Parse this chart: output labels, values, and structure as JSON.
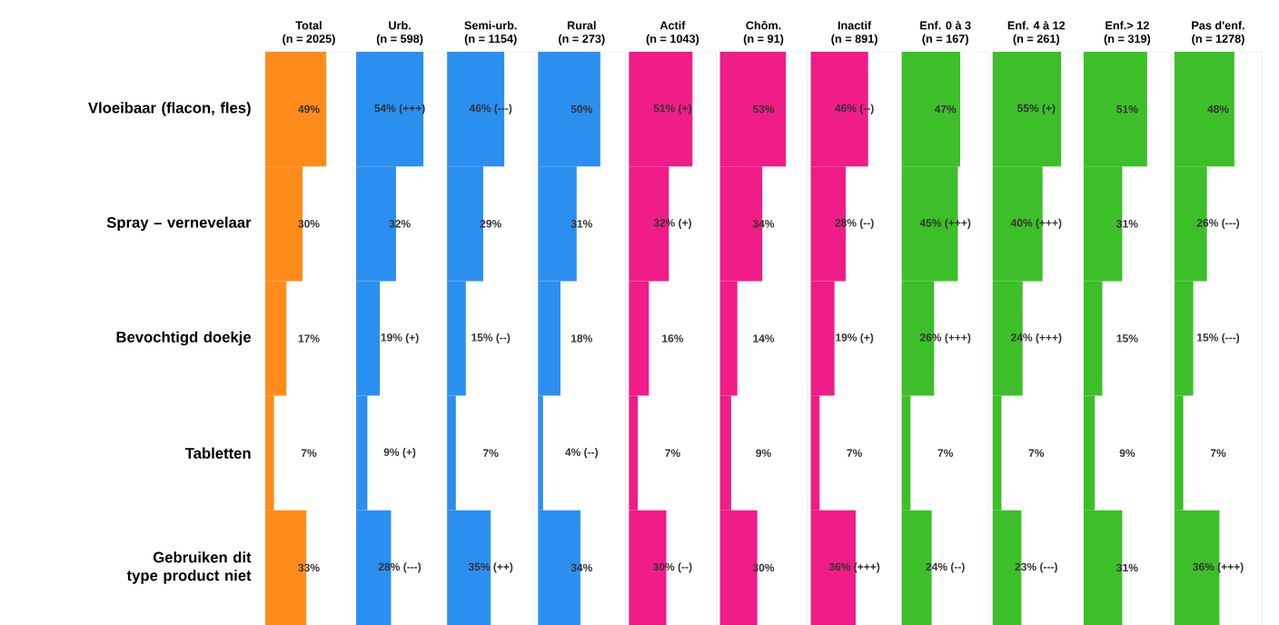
{
  "chart_data": [
    {
      "type": "bar",
      "orientation": "horizontal",
      "title": "Total",
      "subtitle": "(n = 2025)",
      "categories": [
        "Vloeibaar (flacon, fles)",
        "Spray – vernevelaar",
        "Bevochtigd doekje",
        "Tabletten",
        "Gebruiken dit type product niet"
      ],
      "values": [
        49,
        30,
        17,
        7,
        33
      ],
      "value_labels": [
        "49%",
        "30%",
        "17%",
        "7%",
        "33%"
      ],
      "color": "#ff8c1a",
      "xlim": [
        0,
        70
      ],
      "tick_labels": "y"
    },
    {
      "type": "bar",
      "orientation": "horizontal",
      "title": "Urb.",
      "subtitle": "(n = 598)",
      "values": [
        54,
        32,
        19,
        9,
        28
      ],
      "value_labels": [
        "54% (+++)",
        "32%",
        "19% (+)",
        "9% (+)",
        "28% (---)"
      ],
      "color": "#2b8ff0",
      "xlim": [
        0,
        70
      ],
      "tick_labels": false
    },
    {
      "type": "bar",
      "orientation": "horizontal",
      "title": "Semi-urb.",
      "subtitle": "(n = 1154)",
      "values": [
        46,
        29,
        15,
        7,
        35
      ],
      "value_labels": [
        "46% (---)",
        "29%",
        "15% (--)",
        "7%",
        "35% (++)"
      ],
      "color": "#2b8ff0",
      "xlim": [
        0,
        70
      ],
      "tick_labels": false
    },
    {
      "type": "bar",
      "orientation": "horizontal",
      "title": "Rural",
      "subtitle": "(n = 273)",
      "values": [
        50,
        31,
        18,
        4,
        34
      ],
      "value_labels": [
        "50%",
        "31%",
        "18%",
        "4% (--)",
        "34%"
      ],
      "color": "#2b8ff0",
      "xlim": [
        0,
        70
      ],
      "tick_labels": false
    },
    {
      "type": "bar",
      "orientation": "horizontal",
      "title": "Actif",
      "subtitle": "(n = 1043)",
      "values": [
        51,
        32,
        16,
        7,
        30
      ],
      "value_labels": [
        "51% (+)",
        "32% (+)",
        "16%",
        "7%",
        "30% (--)"
      ],
      "color": "#f01c87",
      "xlim": [
        0,
        70
      ],
      "tick_labels": false
    },
    {
      "type": "bar",
      "orientation": "horizontal",
      "title": "Chôm.",
      "subtitle": "(n = 91)",
      "values": [
        53,
        34,
        14,
        9,
        30
      ],
      "value_labels": [
        "53%",
        "34%",
        "14%",
        "9%",
        "30%"
      ],
      "color": "#f01c87",
      "xlim": [
        0,
        70
      ],
      "tick_labels": false
    },
    {
      "type": "bar",
      "orientation": "horizontal",
      "title": "Inactif",
      "subtitle": "(n = 891)",
      "values": [
        46,
        28,
        19,
        7,
        36
      ],
      "value_labels": [
        "46% (--)",
        "28% (--)",
        "19% (+)",
        "7%",
        "36% (+++)"
      ],
      "color": "#f01c87",
      "xlim": [
        0,
        70
      ],
      "tick_labels": false
    },
    {
      "type": "bar",
      "orientation": "horizontal",
      "title": "Enf. 0 à 3",
      "subtitle": "(n = 167)",
      "values": [
        47,
        45,
        26,
        7,
        24
      ],
      "value_labels": [
        "47%",
        "45% (+++)",
        "26% (+++)",
        "7%",
        "24% (--)"
      ],
      "color": "#3cbf28",
      "xlim": [
        0,
        70
      ],
      "tick_labels": false
    },
    {
      "type": "bar",
      "orientation": "horizontal",
      "title": "Enf. 4 à 12",
      "subtitle": "(n = 261)",
      "values": [
        55,
        40,
        24,
        7,
        23
      ],
      "value_labels": [
        "55% (+)",
        "40% (+++)",
        "24% (+++)",
        "7%",
        "23% (---)"
      ],
      "color": "#3cbf28",
      "xlim": [
        0,
        70
      ],
      "tick_labels": false
    },
    {
      "type": "bar",
      "orientation": "horizontal",
      "title": "Enf.> 12",
      "subtitle": "(n = 319)",
      "values": [
        51,
        31,
        15,
        9,
        31
      ],
      "value_labels": [
        "51%",
        "31%",
        "15%",
        "9%",
        "31%"
      ],
      "color": "#3cbf28",
      "xlim": [
        0,
        70
      ],
      "tick_labels": false
    },
    {
      "type": "bar",
      "orientation": "horizontal",
      "title": "Pas d'enf.",
      "subtitle": "(n = 1278)",
      "values": [
        48,
        26,
        15,
        7,
        36
      ],
      "value_labels": [
        "48%",
        "26% (---)",
        "15% (---)",
        "7%",
        "36% (+++)"
      ],
      "color": "#3cbf28",
      "xlim": [
        0,
        70
      ],
      "tick_labels": false
    }
  ]
}
